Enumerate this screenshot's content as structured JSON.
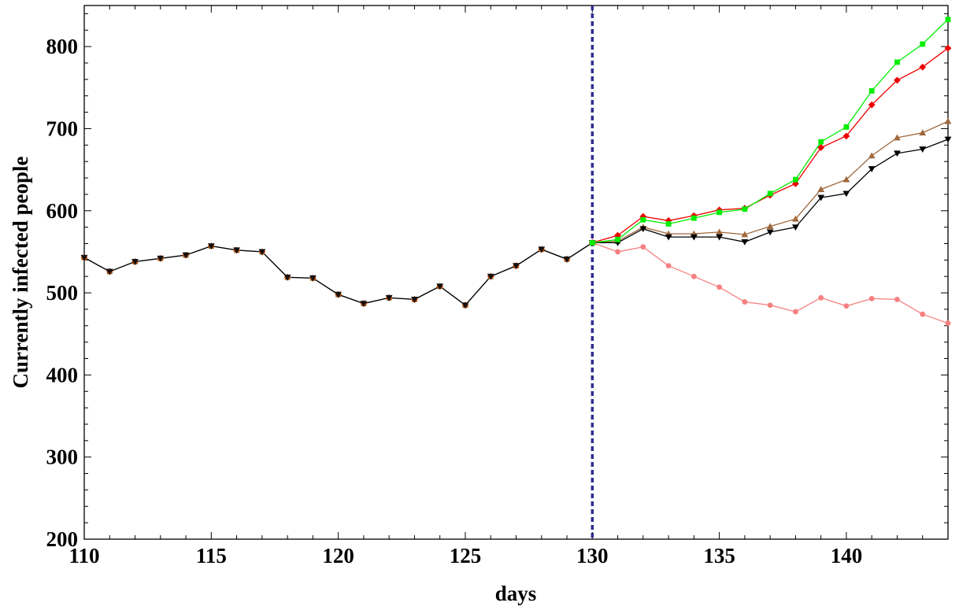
{
  "chart_data": {
    "type": "line",
    "title": "",
    "xlabel": "days",
    "ylabel": "Currently  infected people",
    "xlim": [
      110,
      144
    ],
    "ylim": [
      200,
      850
    ],
    "x_ticks": [
      110,
      115,
      120,
      125,
      130,
      135,
      140
    ],
    "y_ticks": [
      200,
      300,
      400,
      500,
      600,
      700,
      800
    ],
    "grid": false,
    "legend": "none",
    "vline": {
      "x": 130,
      "style": "dashed",
      "color": "#2e2e8f"
    },
    "historical": {
      "x": [
        110,
        111,
        112,
        113,
        114,
        115,
        116,
        117,
        118,
        119,
        120,
        121,
        122,
        123,
        124,
        125,
        126,
        127,
        128,
        129,
        130
      ],
      "y": [
        543,
        526,
        538,
        542,
        546,
        557,
        552,
        550,
        519,
        518,
        498,
        487,
        494,
        492,
        508,
        485,
        520,
        533,
        553,
        541,
        561
      ],
      "color": "#000000"
    },
    "series": [
      {
        "color": "#00ee00",
        "marker": "square",
        "x": [
          130,
          131,
          132,
          133,
          134,
          135,
          136,
          137,
          138,
          139,
          140,
          141,
          142,
          143,
          144
        ],
        "y": [
          561,
          565,
          589,
          584,
          591,
          598,
          602,
          621,
          638,
          684,
          702,
          746,
          781,
          803,
          833
        ]
      },
      {
        "color": "#ee0000",
        "marker": "diamond",
        "x": [
          130,
          131,
          132,
          133,
          134,
          135,
          136,
          137,
          138,
          139,
          140,
          141,
          142,
          143,
          144
        ],
        "y": [
          561,
          570,
          593,
          588,
          594,
          601,
          603,
          619,
          633,
          677,
          691,
          729,
          759,
          775,
          798
        ]
      },
      {
        "color": "#a0683c",
        "marker": "triangle-up",
        "x": [
          130,
          131,
          132,
          133,
          134,
          135,
          136,
          137,
          138,
          139,
          140,
          141,
          142,
          143,
          144
        ],
        "y": [
          561,
          563,
          580,
          572,
          572,
          574,
          571,
          581,
          590,
          626,
          638,
          667,
          689,
          695,
          709
        ]
      },
      {
        "color": "#000000",
        "marker": "triangle-down",
        "x": [
          130,
          131,
          132,
          133,
          134,
          135,
          136,
          137,
          138,
          139,
          140,
          141,
          142,
          143,
          144
        ],
        "y": [
          561,
          561,
          578,
          568,
          568,
          568,
          562,
          574,
          580,
          616,
          621,
          651,
          670,
          675,
          687
        ]
      },
      {
        "color": "#f58080",
        "marker": "circle",
        "x": [
          130,
          131,
          132,
          133,
          134,
          135,
          136,
          137,
          138,
          139,
          140,
          141,
          142,
          143,
          144
        ],
        "y": [
          561,
          550,
          556,
          533,
          520,
          507,
          489,
          485,
          477,
          494,
          484,
          493,
          492,
          474,
          463
        ]
      }
    ]
  }
}
